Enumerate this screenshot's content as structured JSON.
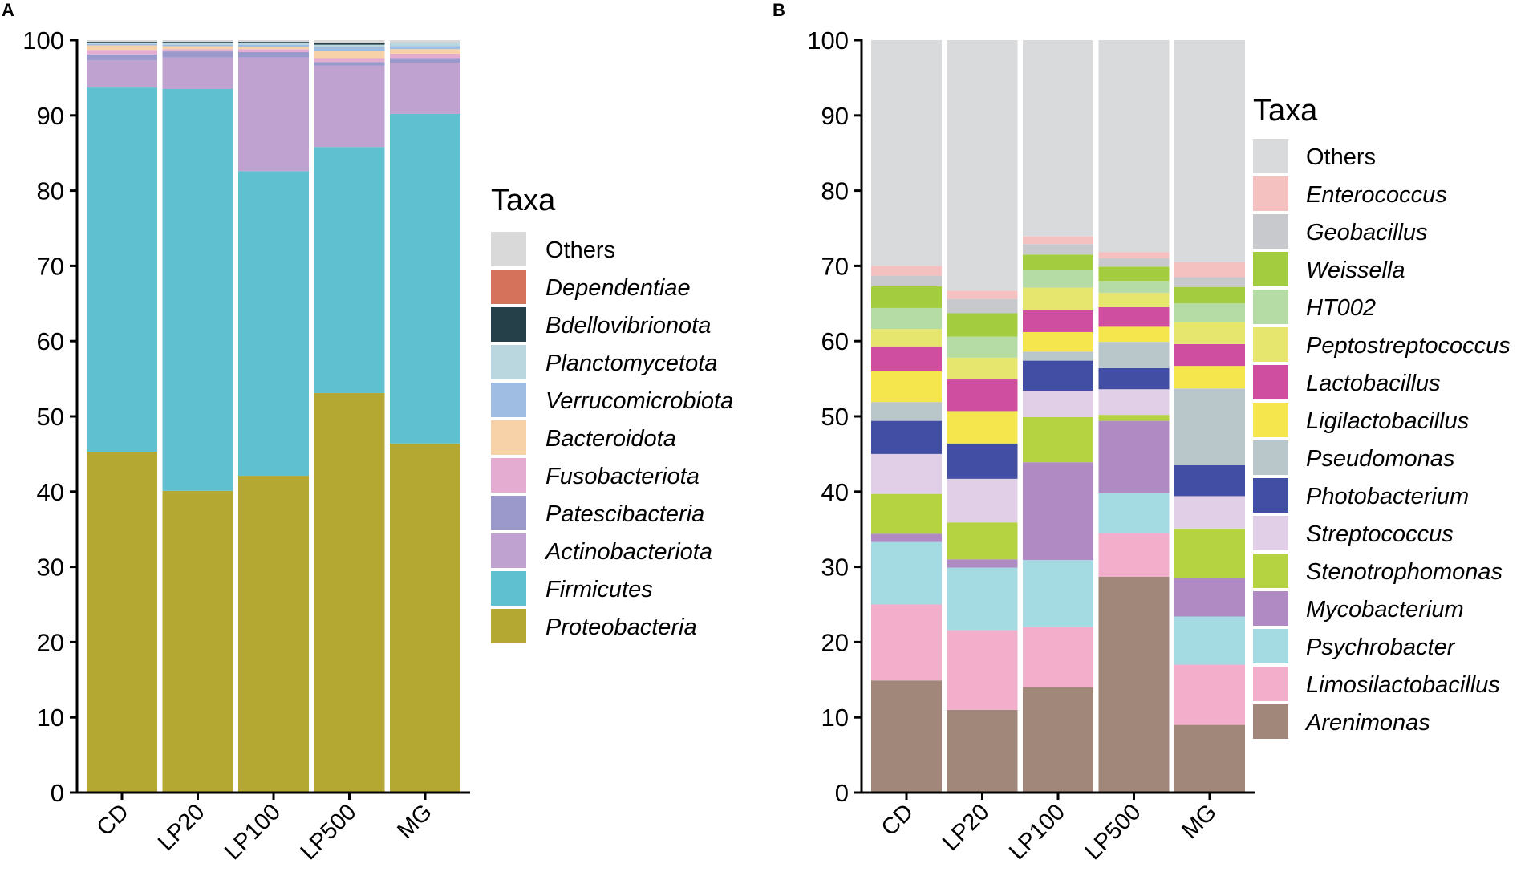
{
  "chart_data": [
    {
      "panel": "A",
      "type": "bar",
      "stacked": true,
      "title": "",
      "xlabel": "",
      "ylabel": "",
      "ylim": [
        0,
        100
      ],
      "yticks": [
        0,
        10,
        20,
        30,
        40,
        50,
        60,
        70,
        80,
        90,
        100
      ],
      "categories": [
        "CD",
        "LP20",
        "LP100",
        "LP500",
        "MG"
      ],
      "legend_title": "Taxa",
      "legend_position": "right",
      "series": [
        {
          "name": "Proteobacteria",
          "color": "#b5a832",
          "italic": true,
          "values": [
            45.3,
            40.1,
            42.1,
            53.1,
            46.4
          ]
        },
        {
          "name": "Firmicutes",
          "color": "#5fc1cf",
          "italic": true,
          "values": [
            48.4,
            53.4,
            40.5,
            32.7,
            43.8
          ]
        },
        {
          "name": "Actinobacteriota",
          "color": "#bfa2cf",
          "italic": true,
          "values": [
            3.6,
            4.2,
            15.1,
            10.8,
            6.8
          ]
        },
        {
          "name": "Patescibacteria",
          "color": "#9b98cc",
          "italic": true,
          "values": [
            0.8,
            0.8,
            0.7,
            0.5,
            0.6
          ]
        },
        {
          "name": "Fusobacteriota",
          "color": "#e3acd0",
          "italic": true,
          "values": [
            0.6,
            0.3,
            0.4,
            0.5,
            0.6
          ]
        },
        {
          "name": "Bacteroidota",
          "color": "#f7d1a8",
          "italic": true,
          "values": [
            0.6,
            0.4,
            0.3,
            1.0,
            0.6
          ]
        },
        {
          "name": "Verrucomicrobiota",
          "color": "#9fbde2",
          "italic": true,
          "values": [
            0.2,
            0.2,
            0.3,
            0.5,
            0.4
          ]
        },
        {
          "name": "Planctomycetota",
          "color": "#bad7df",
          "italic": true,
          "values": [
            0.2,
            0.3,
            0.3,
            0.3,
            0.4
          ]
        },
        {
          "name": "Bdellovibrionota",
          "color": "#26404a",
          "italic": true,
          "values": [
            0.1,
            0.1,
            0.1,
            0.2,
            0.1
          ]
        },
        {
          "name": "Dependentiae",
          "color": "#d4725b",
          "italic": true,
          "values": [
            0.0,
            0.0,
            0.0,
            0.0,
            0.0
          ]
        },
        {
          "name": "Others",
          "color": "#d9d9d9",
          "italic": false,
          "values": [
            0.2,
            0.2,
            0.2,
            0.4,
            0.3
          ]
        }
      ]
    },
    {
      "panel": "B",
      "type": "bar",
      "stacked": true,
      "title": "",
      "xlabel": "",
      "ylabel": "",
      "ylim": [
        0,
        100
      ],
      "yticks": [
        0,
        10,
        20,
        30,
        40,
        50,
        60,
        70,
        80,
        90,
        100
      ],
      "categories": [
        "CD",
        "LP20",
        "LP100",
        "LP500",
        "MG"
      ],
      "legend_title": "Taxa",
      "legend_position": "right",
      "series": [
        {
          "name": "Arenimonas",
          "color": "#a0877a",
          "italic": true,
          "values": [
            14.9,
            11.0,
            14.0,
            28.7,
            9.0
          ]
        },
        {
          "name": "Limosilactobacillus",
          "color": "#f3aecb",
          "italic": true,
          "values": [
            10.1,
            10.6,
            8.0,
            5.8,
            8.0
          ]
        },
        {
          "name": "Psychrobacter",
          "color": "#a4dbe3",
          "italic": true,
          "values": [
            8.3,
            8.3,
            8.9,
            5.3,
            6.4
          ]
        },
        {
          "name": "Mycobacterium",
          "color": "#b08bc3",
          "italic": true,
          "values": [
            1.1,
            1.1,
            13.0,
            9.6,
            5.1
          ]
        },
        {
          "name": "Stenotrophomonas",
          "color": "#b5d240",
          "italic": true,
          "values": [
            5.3,
            4.9,
            6.0,
            0.8,
            6.6
          ]
        },
        {
          "name": "Streptococcus",
          "color": "#e0cfe6",
          "italic": true,
          "values": [
            5.3,
            5.8,
            3.5,
            3.4,
            4.3
          ]
        },
        {
          "name": "Photobacterium",
          "color": "#414ea3",
          "italic": true,
          "values": [
            4.4,
            4.7,
            4.0,
            2.8,
            4.1
          ]
        },
        {
          "name": "Pseudomonas",
          "color": "#b9c6ca",
          "italic": true,
          "values": [
            2.5,
            0.0,
            1.2,
            3.5,
            10.2
          ]
        },
        {
          "name": "Ligilactobacillus",
          "color": "#f6e64e",
          "italic": true,
          "values": [
            4.1,
            4.3,
            2.6,
            2.0,
            3.0
          ]
        },
        {
          "name": "Lactobacillus",
          "color": "#cf4ea0",
          "italic": true,
          "values": [
            3.3,
            4.2,
            2.9,
            2.6,
            2.9
          ]
        },
        {
          "name": "Peptostreptococcus",
          "color": "#e6e66e",
          "italic": true,
          "values": [
            2.3,
            2.9,
            3.0,
            1.9,
            2.9
          ]
        },
        {
          "name": "HT002",
          "color": "#b5dca4",
          "italic": true,
          "values": [
            2.8,
            2.8,
            2.4,
            1.6,
            2.5
          ]
        },
        {
          "name": "Weissella",
          "color": "#a3cd3e",
          "italic": true,
          "values": [
            2.9,
            3.1,
            2.0,
            1.9,
            2.2
          ]
        },
        {
          "name": "Geobacillus",
          "color": "#c8c9cd",
          "italic": true,
          "values": [
            1.4,
            1.9,
            1.4,
            1.1,
            1.3
          ]
        },
        {
          "name": "Enterococcus",
          "color": "#f5c0c0",
          "italic": true,
          "values": [
            1.3,
            1.1,
            1.0,
            0.8,
            2.0
          ]
        },
        {
          "name": "Others",
          "color": "#d9dadc",
          "italic": false,
          "values": [
            30.0,
            33.3,
            26.1,
            28.2,
            29.5
          ]
        }
      ]
    }
  ]
}
